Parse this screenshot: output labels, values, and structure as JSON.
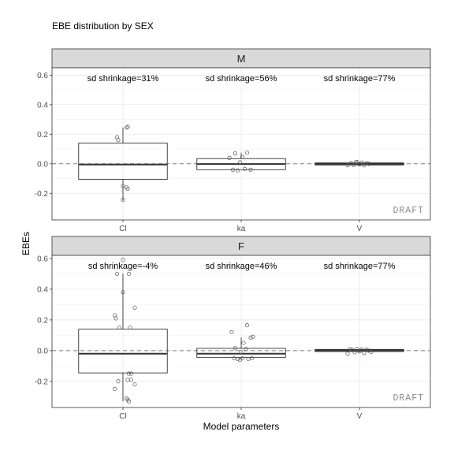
{
  "chart_data": {
    "type": "boxplot",
    "title": "EBE distribution by SEX",
    "xlabel": "Model parameters",
    "ylabel": "EBEs",
    "categories": [
      "Cl",
      "ka",
      "V"
    ],
    "watermark": "DRAFT",
    "reference_line": 0,
    "grid": true,
    "panels": [
      {
        "name": "M",
        "ylim": [
          -0.38,
          0.65
        ],
        "yticks": [
          0.6,
          0.4,
          0.2,
          0.0,
          -0.2
        ],
        "ytick_labels": [
          "0.6",
          "0.4",
          "0.2",
          "0.0",
          "-0.2"
        ],
        "shrinkage_labels": [
          "sd shrinkage=31%",
          "sd shrinkage=56%",
          "sd shrinkage=77%"
        ],
        "boxes": [
          {
            "category": "Cl",
            "min": -0.25,
            "q1": -0.105,
            "median": -0.005,
            "q3": 0.14,
            "max": 0.245
          },
          {
            "category": "ka",
            "min": -0.04,
            "q1": -0.04,
            "median": -0.002,
            "q3": 0.035,
            "max": 0.075
          },
          {
            "category": "V",
            "min": -0.012,
            "q1": -0.008,
            "median": -0.001,
            "q3": 0.006,
            "max": 0.012
          }
        ],
        "points": {
          "Cl": [
            [
              0.95,
              0.18
            ],
            [
              0.96,
              0.16
            ],
            [
              1.03,
              0.245
            ],
            [
              1.04,
              0.25
            ],
            [
              1.0,
              -0.15
            ],
            [
              1.03,
              -0.16
            ],
            [
              1.04,
              -0.17
            ],
            [
              1.0,
              -0.245
            ]
          ],
          "ka": [
            [
              1.9,
              0.04
            ],
            [
              1.95,
              0.07
            ],
            [
              2.05,
              0.075
            ],
            [
              1.93,
              -0.04
            ],
            [
              1.97,
              -0.045
            ],
            [
              2.03,
              -0.035
            ],
            [
              2.08,
              -0.04
            ],
            [
              1.99,
              0.01
            ],
            [
              2.01,
              0.045
            ]
          ],
          "V": [
            [
              2.9,
              -0.01
            ],
            [
              2.93,
              0.005
            ],
            [
              2.95,
              -0.008
            ],
            [
              2.97,
              0.01
            ],
            [
              3.0,
              -0.004
            ],
            [
              3.02,
              0.008
            ],
            [
              3.04,
              -0.01
            ],
            [
              3.06,
              0.004
            ],
            [
              3.08,
              0.0
            ],
            [
              2.98,
              0.012
            ]
          ]
        }
      },
      {
        "name": "F",
        "ylim": [
          -0.37,
          0.62
        ],
        "yticks": [
          0.6,
          0.4,
          0.2,
          0.0,
          -0.2
        ],
        "ytick_labels": [
          "0.6",
          "0.4",
          "0.2",
          "0.0",
          "-0.2"
        ],
        "shrinkage_labels": [
          "sd shrinkage=-4%",
          "sd shrinkage=46%",
          "sd shrinkage=77%"
        ],
        "boxes": [
          {
            "category": "Cl",
            "min": -0.33,
            "q1": -0.145,
            "median": -0.02,
            "q3": 0.14,
            "max": 0.5
          },
          {
            "category": "ka",
            "min": -0.055,
            "q1": -0.045,
            "median": -0.02,
            "q3": 0.015,
            "max": 0.085
          },
          {
            "category": "V",
            "min": -0.012,
            "q1": -0.006,
            "median": 0.002,
            "q3": 0.008,
            "max": 0.012
          }
        ],
        "points": {
          "Cl": [
            [
              0.95,
              0.5
            ],
            [
              1.0,
              0.59
            ],
            [
              1.05,
              0.5
            ],
            [
              1.0,
              0.38
            ],
            [
              1.1,
              0.28
            ],
            [
              0.93,
              0.23
            ],
            [
              0.94,
              0.21
            ],
            [
              0.97,
              0.15
            ],
            [
              1.06,
              0.15
            ],
            [
              1.05,
              -0.15
            ],
            [
              1.07,
              -0.15
            ],
            [
              1.04,
              -0.19
            ],
            [
              1.07,
              -0.19
            ],
            [
              0.96,
              -0.2
            ],
            [
              1.1,
              -0.22
            ],
            [
              0.93,
              -0.25
            ],
            [
              1.03,
              -0.31
            ],
            [
              1.05,
              -0.33
            ],
            [
              1.04,
              -0.32
            ]
          ],
          "ka": [
            [
              1.92,
              0.12
            ],
            [
              2.08,
              0.085
            ],
            [
              2.1,
              0.09
            ],
            [
              2.05,
              0.165
            ],
            [
              1.95,
              0.015
            ],
            [
              2.02,
              0.05
            ],
            [
              2.04,
              0.01
            ],
            [
              1.94,
              -0.05
            ],
            [
              1.97,
              -0.055
            ],
            [
              1.99,
              -0.06
            ],
            [
              2.01,
              -0.05
            ],
            [
              2.06,
              -0.055
            ],
            [
              2.09,
              -0.05
            ],
            [
              2.0,
              -0.01
            ]
          ],
          "V": [
            [
              2.9,
              -0.02
            ],
            [
              2.92,
              0.01
            ],
            [
              2.94,
              0.005
            ],
            [
              2.96,
              -0.01
            ],
            [
              2.98,
              0.012
            ],
            [
              3.0,
              -0.005
            ],
            [
              3.02,
              0.008
            ],
            [
              3.04,
              -0.015
            ],
            [
              3.06,
              0.006
            ],
            [
              3.08,
              0.0
            ],
            [
              3.1,
              -0.008
            ]
          ]
        }
      }
    ]
  }
}
